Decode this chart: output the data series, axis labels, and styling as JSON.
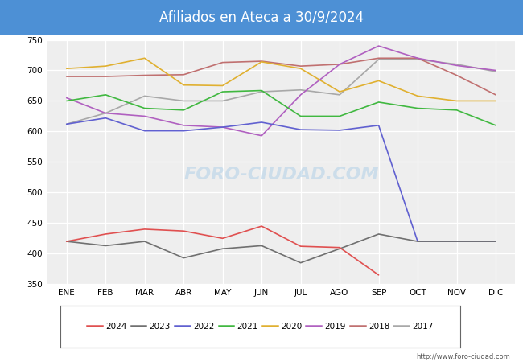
{
  "title": "Afiliados en Ateca a 30/9/2024",
  "title_bg_color": "#4d90d5",
  "title_text_color": "white",
  "ylim": [
    350,
    750
  ],
  "yticks": [
    350,
    400,
    450,
    500,
    550,
    600,
    650,
    700,
    750
  ],
  "months": [
    "ENE",
    "FEB",
    "MAR",
    "ABR",
    "MAY",
    "JUN",
    "JUL",
    "AGO",
    "SEP",
    "OCT",
    "NOV",
    "DIC"
  ],
  "plot_bg_color": "#eeeeee",
  "grid_color": "#ffffff",
  "watermark": "FORO-CIUDAD.COM",
  "url": "http://www.foro-ciudad.com",
  "series_order": [
    "2017",
    "2018",
    "2019",
    "2020",
    "2021",
    "2022",
    "2023",
    "2024"
  ],
  "legend_order": [
    "2024",
    "2023",
    "2022",
    "2021",
    "2020",
    "2019",
    "2018",
    "2017"
  ],
  "series": {
    "2024": {
      "color": "#e05050",
      "data": [
        420,
        432,
        440,
        437,
        425,
        445,
        412,
        410,
        365,
        null,
        null,
        null
      ]
    },
    "2023": {
      "color": "#707070",
      "data": [
        420,
        413,
        420,
        393,
        408,
        413,
        385,
        408,
        432,
        420,
        420,
        420
      ]
    },
    "2022": {
      "color": "#6060d0",
      "data": [
        612,
        622,
        601,
        601,
        607,
        615,
        603,
        602,
        610,
        420,
        420,
        420
      ]
    },
    "2021": {
      "color": "#40b840",
      "data": [
        650,
        660,
        638,
        635,
        665,
        667,
        625,
        625,
        648,
        638,
        635,
        610
      ]
    },
    "2020": {
      "color": "#e0b030",
      "data": [
        703,
        707,
        720,
        676,
        675,
        714,
        703,
        665,
        683,
        658,
        650,
        650
      ]
    },
    "2019": {
      "color": "#b060c0",
      "data": [
        655,
        630,
        625,
        610,
        607,
        593,
        660,
        710,
        740,
        720,
        708,
        700
      ]
    },
    "2018": {
      "color": "#c07070",
      "data": [
        690,
        690,
        692,
        693,
        713,
        715,
        707,
        710,
        720,
        720,
        692,
        660
      ]
    },
    "2017": {
      "color": "#a8a8a8",
      "data": [
        612,
        630,
        658,
        650,
        650,
        665,
        668,
        660,
        718,
        718,
        710,
        698
      ]
    }
  }
}
